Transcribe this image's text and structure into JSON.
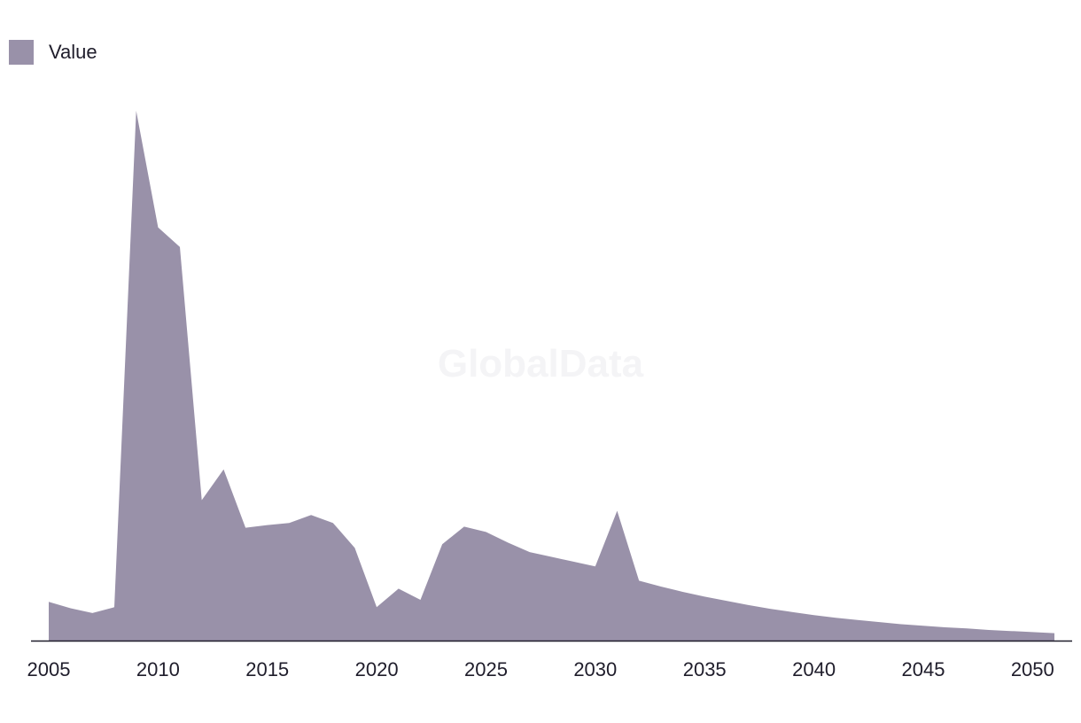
{
  "watermark": "GlobalData",
  "colors": {
    "area": "#9991a9",
    "axis": "#1f1d2b",
    "text": "#1f1d2b"
  },
  "chart_data": {
    "type": "area",
    "title": "",
    "xlabel": "",
    "ylabel": "",
    "legend": {
      "position": "top-left",
      "entries": [
        "Value"
      ]
    },
    "grid": false,
    "x_ticks": [
      "2005",
      "2010",
      "2015",
      "2020",
      "2025",
      "2030",
      "2035",
      "2040",
      "2045",
      "2050"
    ],
    "xlim": [
      2005,
      2051
    ],
    "ylim": [
      0,
      100
    ],
    "series": [
      {
        "name": "Value",
        "x": [
          2005,
          2006,
          2007,
          2008,
          2009,
          2010,
          2011,
          2012,
          2013,
          2014,
          2015,
          2016,
          2017,
          2018,
          2019,
          2020,
          2021,
          2022,
          2023,
          2024,
          2025,
          2026,
          2027,
          2028,
          2029,
          2030,
          2031,
          2032,
          2033,
          2034,
          2035,
          2036,
          2037,
          2038,
          2039,
          2040,
          2041,
          2042,
          2043,
          2044,
          2045,
          2046,
          2047,
          2048,
          2049,
          2050,
          2051
        ],
        "values": [
          7.3,
          6.1,
          5.2,
          6.3,
          100,
          78,
          74.3,
          26.5,
          32.3,
          21.3,
          21.8,
          22.2,
          23.7,
          22.2,
          17.5,
          6.3,
          9.8,
          7.7,
          18.2,
          21.5,
          20.5,
          18.5,
          16.7,
          15.8,
          14.9,
          14,
          24.5,
          11.3,
          10.2,
          9.2,
          8.3,
          7.5,
          6.7,
          6,
          5.4,
          4.8,
          4.3,
          3.9,
          3.5,
          3.1,
          2.8,
          2.5,
          2.3,
          2,
          1.8,
          1.6,
          1.4
        ]
      }
    ]
  }
}
